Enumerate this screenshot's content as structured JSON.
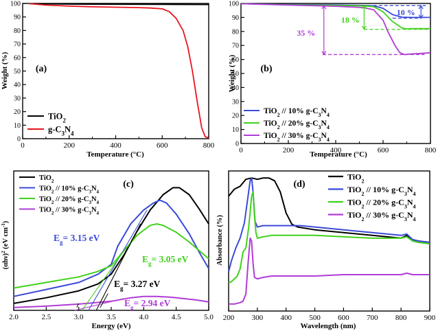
{
  "chart_data": [
    {
      "panel": "a",
      "type": "line",
      "label": "(a)",
      "xlabel": "Temperature (°C)",
      "ylabel": "Weight (%)",
      "xlim": [
        0,
        800
      ],
      "ylim": [
        0,
        100
      ],
      "xticks": [
        "0",
        "200",
        "400",
        "600",
        "800"
      ],
      "yticks": [
        "0",
        "10",
        "20",
        "30",
        "40",
        "50",
        "60",
        "70",
        "80",
        "90",
        "100"
      ],
      "series": [
        {
          "name": "TiO2",
          "legend_main": "TiO",
          "legend_sub": "2",
          "legend_rest": "",
          "color": "#000000",
          "x": [
            30,
            200,
            400,
            600,
            800
          ],
          "y": [
            99.8,
            99.5,
            99.4,
            99.3,
            99.2
          ]
        },
        {
          "name": "g-C3N4",
          "legend_main": "g-C",
          "legend_sub": "3",
          "legend_rest": "N",
          "legend_sub2": "4",
          "color": "#e8141e",
          "x": [
            30,
            100,
            200,
            300,
            400,
            500,
            550,
            600,
            630,
            660,
            690,
            710,
            730,
            750,
            770,
            785,
            800
          ],
          "y": [
            99.8,
            98.8,
            98.0,
            97.5,
            97.2,
            96.9,
            96.6,
            96.0,
            94.0,
            89.0,
            80.0,
            68.0,
            50.0,
            28.0,
            8.0,
            1.5,
            0.5
          ]
        }
      ]
    },
    {
      "panel": "b",
      "type": "line",
      "label": "(b)",
      "xlabel": "Temperature (°C)",
      "ylabel": "Weight (%)",
      "xlim": [
        0,
        800
      ],
      "ylim": [
        0,
        100
      ],
      "xticks": [
        "0",
        "200",
        "400",
        "600",
        "800"
      ],
      "yticks": [
        "0",
        "10",
        "20",
        "30",
        "40",
        "50",
        "60",
        "70",
        "80",
        "90",
        "100"
      ],
      "annotations": [
        {
          "text": "10 %",
          "color": "#3a4ad8",
          "y_top": 98.5,
          "y_bottom": 89.5
        },
        {
          "text": "18 %",
          "color": "#41d11b",
          "y_top": 98.5,
          "y_bottom": 81.5
        },
        {
          "text": "35 %",
          "color": "#b13bd6",
          "y_top": 98.5,
          "y_bottom": 63.5
        }
      ],
      "series": [
        {
          "name": "TiO2 // 10% g-C3N4",
          "legend": [
            "TiO",
            "2",
            " // 10% g-C",
            "3",
            "N",
            "4"
          ],
          "color": "#3a4ad8",
          "x": [
            0,
            200,
            400,
            520,
            560,
            600,
            640,
            680,
            720,
            800
          ],
          "y": [
            99.8,
            99.2,
            98.9,
            98.6,
            98.3,
            96.5,
            92.0,
            90.2,
            90.0,
            90.0
          ]
        },
        {
          "name": "TiO2 // 20% g-C3N4",
          "legend": [
            "TiO",
            "2",
            " // 20% g-C",
            "3",
            "N",
            "4"
          ],
          "color": "#41d11b",
          "x": [
            0,
            200,
            400,
            520,
            560,
            600,
            640,
            680,
            700,
            720,
            800
          ],
          "y": [
            99.8,
            99.0,
            98.6,
            98.2,
            97.7,
            94.0,
            87.0,
            82.5,
            81.8,
            82.0,
            82.0
          ]
        },
        {
          "name": "TiO2 // 30% g-C3N4",
          "legend": [
            "TiO",
            "2",
            " // 30% g-C",
            "3",
            "N",
            "4"
          ],
          "color": "#b13bd6",
          "x": [
            0,
            200,
            400,
            520,
            560,
            600,
            620,
            650,
            670,
            690,
            710,
            760,
            800
          ],
          "y": [
            99.8,
            98.8,
            98.0,
            97.0,
            95.5,
            88.0,
            80.0,
            70.0,
            65.0,
            63.5,
            63.8,
            64.3,
            64.8
          ]
        }
      ]
    },
    {
      "panel": "c",
      "type": "line",
      "label": "(c)",
      "xlabel": "Energy (eV)",
      "ylabel_main": "(αhν)",
      "ylabel_sup": "2",
      "ylabel_rest": " (eV cm",
      "ylabel_sup2": "-1",
      "ylabel_end": ")",
      "xlim": [
        2.0,
        5.0
      ],
      "ylim": [
        0,
        1
      ],
      "xticks": [
        "2.0",
        "2.5",
        "3.0",
        "3.5",
        "4.0",
        "4.5",
        "5.0"
      ],
      "annotations": [
        {
          "main": "E",
          "sub": "g",
          "rest": "= 3.15 eV",
          "color": "#3a4ad8"
        },
        {
          "main": "E",
          "sub": "g",
          "rest": "= 3.05 eV",
          "color": "#41d11b"
        },
        {
          "main": "E",
          "sub": "g",
          "rest": "= 3.27 eV",
          "color": "#000000"
        },
        {
          "main": "E",
          "sub": "g",
          "rest": "= 2.94 eV",
          "color": "#b13bd6"
        }
      ],
      "series": [
        {
          "name": "TiO2",
          "legend": [
            "TiO",
            "2",
            "",
            "",
            "",
            ""
          ],
          "color": "#000000",
          "x": [
            2.0,
            2.5,
            3.0,
            3.3,
            3.5,
            3.7,
            3.9,
            4.1,
            4.3,
            4.45,
            4.55,
            4.7,
            4.85,
            5.0
          ],
          "y": [
            0.05,
            0.09,
            0.14,
            0.19,
            0.26,
            0.4,
            0.57,
            0.72,
            0.83,
            0.88,
            0.88,
            0.83,
            0.73,
            0.62
          ]
        },
        {
          "name": "TiO2 // 10% g-C3N4",
          "legend": [
            "TiO",
            "2",
            " // 10% g-C",
            "3",
            "N",
            "4"
          ],
          "color": "#3a4ad8",
          "x": [
            2.0,
            2.5,
            3.0,
            3.3,
            3.5,
            3.6,
            3.8,
            4.0,
            4.15,
            4.25,
            4.35,
            4.5,
            4.7,
            4.85,
            5.0
          ],
          "y": [
            0.1,
            0.15,
            0.2,
            0.26,
            0.33,
            0.46,
            0.62,
            0.72,
            0.77,
            0.79,
            0.77,
            0.69,
            0.55,
            0.42,
            0.3
          ]
        },
        {
          "name": "TiO2 // 20% g-C3N4",
          "legend": [
            "TiO",
            "2",
            " // 20% g-C",
            "3",
            "N",
            "4"
          ],
          "color": "#41d11b",
          "x": [
            2.0,
            2.5,
            3.0,
            3.3,
            3.5,
            3.7,
            3.9,
            4.1,
            4.2,
            4.3,
            4.5,
            4.7,
            5.0
          ],
          "y": [
            0.16,
            0.2,
            0.24,
            0.28,
            0.32,
            0.43,
            0.54,
            0.61,
            0.62,
            0.61,
            0.56,
            0.49,
            0.37
          ]
        },
        {
          "name": "TiO2 // 30% g-C3N4",
          "legend": [
            "TiO",
            "2",
            " // 30% g-C",
            "3",
            "N",
            "4"
          ],
          "color": "#b13bd6",
          "x": [
            2.0,
            2.5,
            3.0,
            3.5,
            3.8,
            4.0,
            4.2,
            4.4,
            4.6,
            4.8,
            5.0
          ],
          "y": [
            0.02,
            0.03,
            0.045,
            0.065,
            0.09,
            0.1,
            0.1,
            0.095,
            0.085,
            0.075,
            0.06
          ]
        }
      ]
    },
    {
      "panel": "d",
      "type": "line",
      "label": "(d)",
      "xlabel": "Wavelength (nm)",
      "ylabel": "Absorbance (%)",
      "xlim": [
        200,
        900
      ],
      "ylim": [
        0,
        1
      ],
      "xticks": [
        "200",
        "300",
        "400",
        "500",
        "600",
        "700",
        "800",
        "900"
      ],
      "series": [
        {
          "name": "TiO2",
          "legend": [
            "TiO",
            "2",
            "",
            "",
            "",
            ""
          ],
          "color": "#000000",
          "x": [
            200,
            220,
            240,
            260,
            280,
            300,
            320,
            340,
            360,
            380,
            400,
            420,
            440,
            500,
            600,
            700,
            800,
            820,
            840,
            860,
            900
          ],
          "y": [
            0.82,
            0.87,
            0.89,
            0.94,
            0.95,
            0.94,
            0.95,
            0.95,
            0.93,
            0.85,
            0.7,
            0.62,
            0.6,
            0.58,
            0.56,
            0.54,
            0.52,
            0.54,
            0.51,
            0.5,
            0.49
          ]
        },
        {
          "name": "TiO2 // 10% g-C3N4",
          "legend": [
            "TiO",
            "2",
            " // 10% g-C",
            "3",
            "N",
            "4"
          ],
          "color": "#3a4ad8",
          "x": [
            200,
            210,
            225,
            240,
            255,
            265,
            275,
            280,
            285,
            292,
            300,
            320,
            350,
            400,
            450,
            500,
            600,
            700,
            800,
            820,
            840,
            860,
            900
          ],
          "y": [
            0.28,
            0.36,
            0.45,
            0.52,
            0.63,
            0.78,
            0.93,
            0.95,
            0.85,
            0.64,
            0.6,
            0.61,
            0.61,
            0.61,
            0.61,
            0.6,
            0.58,
            0.56,
            0.54,
            0.55,
            0.51,
            0.5,
            0.49
          ]
        },
        {
          "name": "TiO2 // 20% g-C3N4",
          "legend": [
            "TiO",
            "2",
            " // 20% g-C",
            "3",
            "N",
            "4"
          ],
          "color": "#41d11b",
          "x": [
            200,
            210,
            220,
            230,
            240,
            250,
            260,
            270,
            280,
            285,
            290,
            295,
            300,
            320,
            350,
            400,
            500,
            600,
            700,
            800,
            820,
            840,
            860,
            900
          ],
          "y": [
            0.2,
            0.21,
            0.23,
            0.25,
            0.3,
            0.42,
            0.45,
            0.6,
            0.82,
            0.85,
            0.68,
            0.56,
            0.52,
            0.53,
            0.54,
            0.54,
            0.54,
            0.53,
            0.52,
            0.52,
            0.53,
            0.5,
            0.49,
            0.48
          ]
        },
        {
          "name": "TiO2 // 30% g-C3N4",
          "legend": [
            "TiO",
            "2",
            " // 30% g-C",
            "3",
            "N",
            "4"
          ],
          "color": "#b13bd6",
          "x": [
            200,
            220,
            240,
            250,
            260,
            268,
            275,
            280,
            285,
            290,
            300,
            320,
            350,
            400,
            500,
            600,
            700,
            800,
            820,
            840,
            860,
            900
          ],
          "y": [
            0.05,
            0.05,
            0.06,
            0.07,
            0.12,
            0.35,
            0.52,
            0.5,
            0.34,
            0.24,
            0.23,
            0.24,
            0.25,
            0.25,
            0.25,
            0.26,
            0.26,
            0.26,
            0.27,
            0.26,
            0.26,
            0.26
          ]
        }
      ]
    }
  ]
}
